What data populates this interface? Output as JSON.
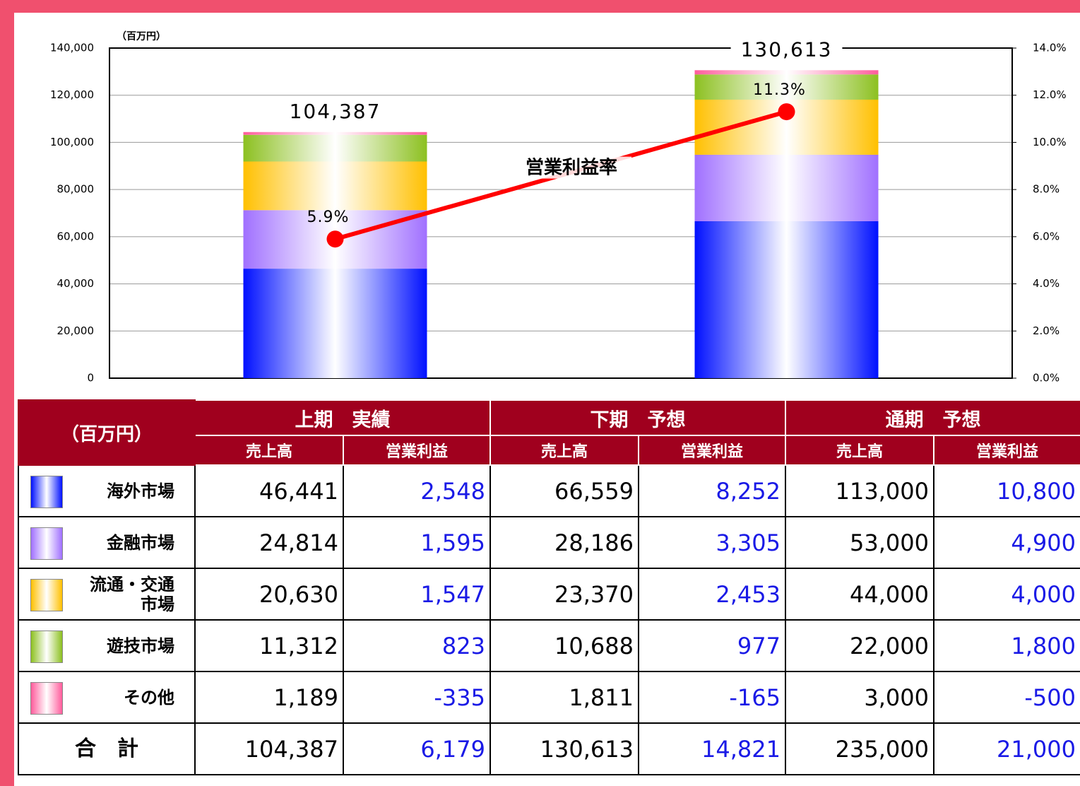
{
  "chart_data": {
    "type": "bar",
    "y_axis_label": "（百万円）",
    "categories": [
      null,
      null
    ],
    "series": [
      {
        "color": "#0010ff",
        "values": [
          46441,
          66559
        ]
      },
      {
        "color": "#a070ff",
        "values": [
          24814,
          28186
        ]
      },
      {
        "color": "#ffc000",
        "values": [
          20630,
          23370
        ]
      },
      {
        "color": "#8cc020",
        "values": [
          11312,
          10688
        ]
      },
      {
        "color": "#ff5c9c",
        "values": [
          1189,
          1811
        ]
      },
      {
        "name": "営業利益率",
        "type": "line",
        "axis": "y2",
        "color": "#ff0000",
        "values": [
          5.9,
          11.3
        ],
        "value_labels": [
          "5.9%",
          "11.3%"
        ]
      }
    ],
    "total_labels": [
      "104,387",
      "130,613"
    ],
    "ylim": [
      0,
      140000
    ],
    "yticks": [
      0,
      {
        "value": 20000,
        "label": "20,000"
      },
      {
        "value": 40000,
        "label": "40,000"
      },
      {
        "value": 60000,
        "label": "60,000"
      },
      {
        "value": 80000,
        "label": "80,000"
      },
      {
        "value": 100000,
        "label": "100,000"
      },
      {
        "value": 120000,
        "label": "120,000"
      },
      {
        "value": 140000,
        "label": "140,000"
      }
    ],
    "y2lim": [
      0,
      14
    ],
    "y2ticks": [
      {
        "value": 0,
        "label": "0.0%"
      },
      {
        "value": 2,
        "label": "2.0%"
      },
      {
        "value": 4,
        "label": "4.0%"
      },
      {
        "value": 6,
        "label": "6.0%"
      },
      {
        "value": 8,
        "label": "8.0%"
      },
      {
        "value": 10,
        "label": "10.0%"
      },
      {
        "value": 12,
        "label": "12.0%"
      },
      {
        "value": 14,
        "label": "14.0%"
      }
    ],
    "grid": true
  },
  "table": {
    "header": "（百万円）",
    "groups": [
      "上期　実績",
      "下期　予想",
      "通期　予想"
    ],
    "subheaders": [
      "売上高",
      "営業利益",
      "売上高",
      "営業利益",
      "売上高",
      "営業利益"
    ],
    "rows": [
      {
        "label": "海外市場",
        "cells": [
          "46,441",
          "2,548",
          "66,559",
          "8,252",
          "113,000",
          "10,800"
        ]
      },
      {
        "label": "金融市場",
        "cells": [
          "24,814",
          "1,595",
          "28,186",
          "3,305",
          "53,000",
          "4,900"
        ]
      },
      {
        "label": "流通・交通\n市場",
        "cells": [
          "20,630",
          "1,547",
          "23,370",
          "2,453",
          "44,000",
          "4,000"
        ]
      },
      {
        "label": "遊技市場",
        "cells": [
          "11,312",
          "823",
          "10,688",
          "977",
          "22,000",
          "1,800"
        ]
      },
      {
        "label": "その他",
        "cells": [
          "1,189",
          "-335",
          "1,811",
          "-165",
          "3,000",
          "-500"
        ]
      },
      {
        "label": "合　計",
        "cells": [
          "104,387",
          "6,179",
          "130,613",
          "14,821",
          "235,000",
          "21,000"
        ]
      }
    ]
  }
}
